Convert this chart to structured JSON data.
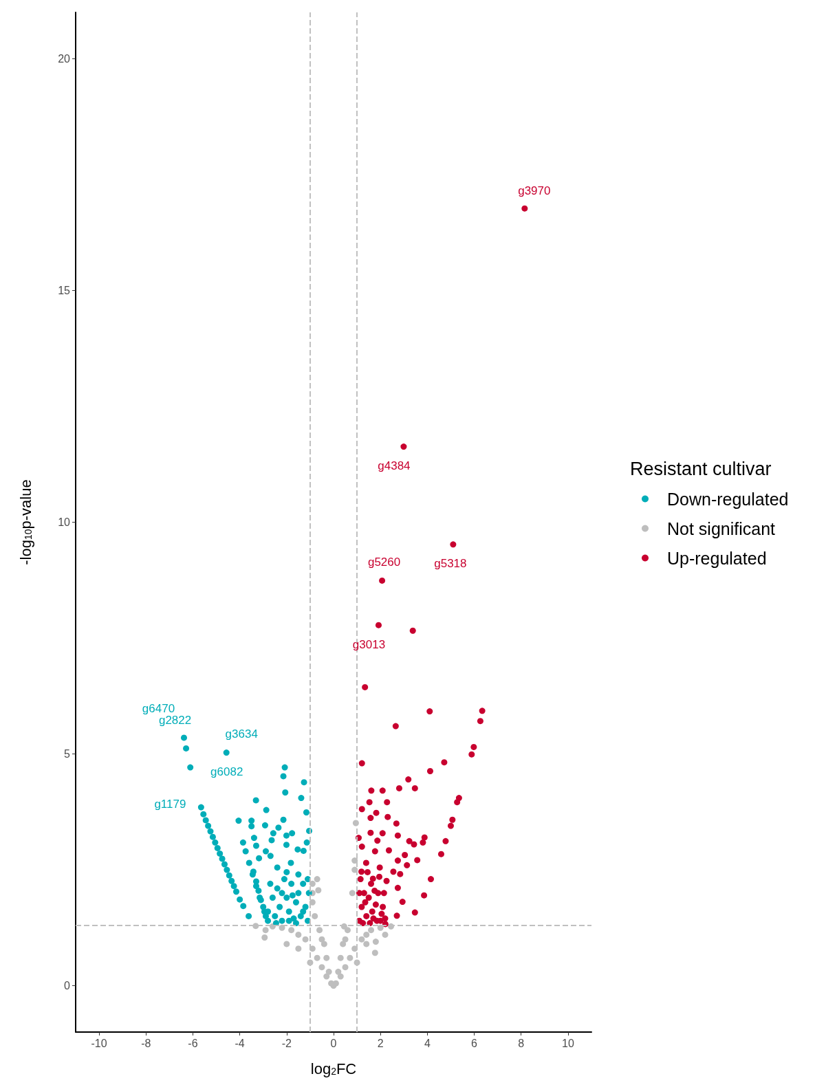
{
  "chart_data": {
    "type": "scatter",
    "xlabel": "log$_{2}$FC",
    "ylabel": "-log$_{10}$p-value",
    "legend_title": "Resistant cultivar",
    "legend": "right",
    "grid": false,
    "marker": "circle",
    "xlim": [
      -11,
      11
    ],
    "xticks": [
      -10,
      -8,
      -6,
      -4,
      -2,
      0,
      2,
      4,
      6,
      8,
      10
    ],
    "ylim": [
      -1,
      21
    ],
    "yticks": [
      0,
      5,
      10,
      15,
      20
    ],
    "series": [
      {
        "name": "Down-regulated",
        "color": "#00adb8",
        "x": [
          -6.38,
          -6.29,
          -6.11,
          -4.57,
          -5.65,
          -5.55,
          -5.45,
          -5.35,
          -5.25,
          -5.15,
          -5.05,
          -4.95,
          -4.85,
          -4.75,
          -4.65,
          -4.55,
          -4.45,
          -4.35,
          -4.25,
          -4.15,
          -4.0,
          -3.85,
          -3.62,
          -3.86,
          -3.75,
          -3.6,
          -3.45,
          -3.3,
          -3.15,
          -3.0,
          -2.89,
          -3.42,
          -3.3,
          -3.2,
          -3.1,
          -2.95,
          -2.8,
          -2.08,
          -2.14,
          -1.26,
          -2.06,
          -1.38,
          -3.31,
          -2.87,
          -1.16,
          -4.05,
          -3.5,
          -2.14,
          -2.92,
          -3.5,
          -2.35,
          -1.04,
          -2.57,
          -1.77,
          -2.01,
          -3.39,
          -2.64,
          -1.14,
          -2.01,
          -3.3,
          -1.53,
          -2.89,
          -1.28,
          -3.18,
          -2.69,
          -1.82,
          -2.4,
          -2.8,
          -2.6,
          -2.5,
          -2.4,
          -2.3,
          -2.2,
          -2.1,
          -2.0,
          -1.9,
          -1.8,
          -1.7,
          -1.6,
          -1.5,
          -1.4,
          -1.3,
          -1.2,
          -1.1,
          -1.05,
          -1.5,
          -2.7,
          -2.2,
          -1.9,
          -1.3,
          -1.1,
          -2.45,
          -1.6,
          -2.0,
          -1.75
        ],
        "values": [
          5.35,
          5.12,
          4.71,
          5.03,
          3.85,
          3.7,
          3.57,
          3.45,
          3.33,
          3.21,
          3.09,
          2.97,
          2.85,
          2.74,
          2.62,
          2.5,
          2.38,
          2.26,
          2.15,
          2.03,
          1.86,
          1.72,
          1.5,
          3.09,
          2.9,
          2.65,
          2.4,
          2.15,
          1.9,
          1.7,
          1.5,
          2.46,
          2.25,
          2.05,
          1.85,
          1.6,
          1.4,
          4.71,
          4.52,
          4.39,
          4.17,
          4.05,
          4.0,
          3.79,
          3.74,
          3.56,
          3.56,
          3.58,
          3.46,
          3.44,
          3.41,
          3.34,
          3.29,
          3.29,
          3.24,
          3.19,
          3.14,
          3.09,
          3.04,
          3.02,
          2.94,
          2.9,
          2.91,
          2.75,
          2.8,
          2.65,
          2.55,
          1.6,
          1.9,
          1.5,
          2.1,
          1.7,
          1.4,
          2.3,
          1.9,
          1.6,
          2.2,
          1.45,
          1.8,
          2.0,
          1.5,
          2.2,
          1.7,
          1.4,
          2.0,
          2.4,
          2.2,
          2.0,
          1.4,
          1.6,
          2.3,
          1.35,
          1.35,
          2.45,
          1.95
        ]
      },
      {
        "name": "Not significant",
        "color": "#bebebe",
        "x": [
          0,
          -0.1,
          0.1,
          -0.3,
          0.3,
          -0.5,
          0.5,
          -0.7,
          0.7,
          -0.9,
          0.9,
          -1.2,
          1.2,
          -1.5,
          1.4,
          -1.8,
          1.6,
          -2.2,
          2.0,
          -2.6,
          0.45,
          -3.32,
          -2.94,
          2.45,
          1.77,
          -0.5,
          0.5,
          -0.8,
          -0.9,
          -0.7,
          -0.9,
          0.8,
          0.9,
          0.95,
          0.9,
          -0.65,
          -0.9,
          -0.3,
          0.3,
          -0.6,
          0.6,
          -1.5,
          1.4,
          -1.0,
          1.0,
          -2.0,
          1.8,
          -0.2,
          0.2,
          -0.4,
          0.4,
          -2.9,
          2.2
        ],
        "values": [
          0,
          0.05,
          0.05,
          0.2,
          0.2,
          0.4,
          0.4,
          0.6,
          0.6,
          0.8,
          0.8,
          1.0,
          1.0,
          1.1,
          1.1,
          1.2,
          1.2,
          1.25,
          1.25,
          1.28,
          1.28,
          1.29,
          1.04,
          1.28,
          0.71,
          1.0,
          1.0,
          1.5,
          2.0,
          2.3,
          2.2,
          2.0,
          2.5,
          3.51,
          2.7,
          2.06,
          1.8,
          0.6,
          0.6,
          1.2,
          1.2,
          0.8,
          0.9,
          0.5,
          0.5,
          0.9,
          0.95,
          0.3,
          0.3,
          0.9,
          0.9,
          1.2,
          1.1
        ]
      },
      {
        "name": "Up-regulated",
        "color": "#c8002f",
        "x": [
          8.15,
          2.99,
          5.1,
          2.07,
          1.92,
          3.38,
          1.34,
          4.1,
          6.34,
          6.26,
          2.65,
          5.98,
          5.89,
          1.21,
          4.72,
          4.12,
          3.19,
          1.61,
          2.09,
          2.8,
          3.47,
          5.35,
          5.27,
          1.53,
          2.28,
          1.21,
          1.82,
          1.58,
          2.31,
          2.68,
          5.07,
          5.0,
          1.58,
          2.09,
          1.07,
          2.74,
          3.88,
          3.81,
          1.87,
          3.23,
          3.43,
          4.78,
          1.21,
          1.77,
          2.36,
          4.59,
          3.04,
          3.57,
          2.74,
          3.13,
          1.39,
          1.97,
          2.55,
          2.84,
          4.15,
          1.19,
          1.68,
          2.26,
          2.74,
          3.86,
          2.94,
          3.47,
          2.7,
          2.21,
          1.1,
          1.2,
          1.3,
          1.15,
          1.4,
          1.5,
          1.6,
          1.7,
          1.8,
          1.9,
          2.0,
          2.1,
          1.25,
          1.45,
          1.65,
          1.95,
          2.15,
          1.35,
          1.55,
          1.75,
          2.05,
          1.1,
          1.85,
          2.2
        ],
        "values": [
          16.77,
          11.63,
          9.52,
          8.74,
          7.78,
          7.66,
          6.44,
          5.92,
          5.93,
          5.71,
          5.6,
          5.15,
          4.99,
          4.8,
          4.82,
          4.63,
          4.45,
          4.21,
          4.21,
          4.26,
          4.26,
          4.05,
          3.96,
          3.96,
          3.96,
          3.81,
          3.73,
          3.62,
          3.64,
          3.5,
          3.58,
          3.45,
          3.3,
          3.29,
          3.19,
          3.24,
          3.2,
          3.09,
          3.13,
          3.12,
          3.05,
          3.12,
          3.0,
          2.9,
          2.92,
          2.84,
          2.82,
          2.71,
          2.7,
          2.6,
          2.65,
          2.55,
          2.46,
          2.41,
          2.3,
          2.46,
          2.31,
          2.26,
          2.11,
          1.95,
          1.81,
          1.58,
          1.51,
          1.33,
          1.4,
          1.7,
          2.0,
          2.3,
          1.5,
          1.9,
          2.2,
          1.45,
          1.75,
          2.0,
          1.4,
          1.7,
          1.35,
          2.45,
          1.6,
          2.35,
          2.0,
          1.8,
          1.35,
          2.05,
          1.55,
          2.0,
          1.4,
          1.45
        ]
      }
    ],
    "annotations": [
      {
        "text": "g3970",
        "x": 8.15,
        "y": 16.77
      },
      {
        "text": "g4384",
        "x": 2.99,
        "y": 11.63
      },
      {
        "text": "g5318",
        "x": 5.1,
        "y": 9.52
      },
      {
        "text": "g5260",
        "x": 2.07,
        "y": 8.74
      },
      {
        "text": "g3013",
        "x": 1.92,
        "y": 7.78
      },
      {
        "text": "g6470",
        "x": -6.38,
        "y": 5.35
      },
      {
        "text": "g2822",
        "x": -6.29,
        "y": 5.12
      },
      {
        "text": "g3634",
        "x": -4.57,
        "y": 5.03
      },
      {
        "text": "g6082",
        "x": -6.11,
        "y": 4.71
      },
      {
        "text": "g1179",
        "x": -5.65,
        "y": 3.85
      }
    ],
    "ref_lines": [
      {
        "axis": "x",
        "value": -1,
        "line_style": "dashed",
        "color": "#c0c0c0"
      },
      {
        "axis": "x",
        "value": 1,
        "line_style": "dashed",
        "color": "#c0c0c0"
      },
      {
        "axis": "y",
        "value": 1.3,
        "line_style": "dashed",
        "color": "#c0c0c0"
      }
    ]
  }
}
